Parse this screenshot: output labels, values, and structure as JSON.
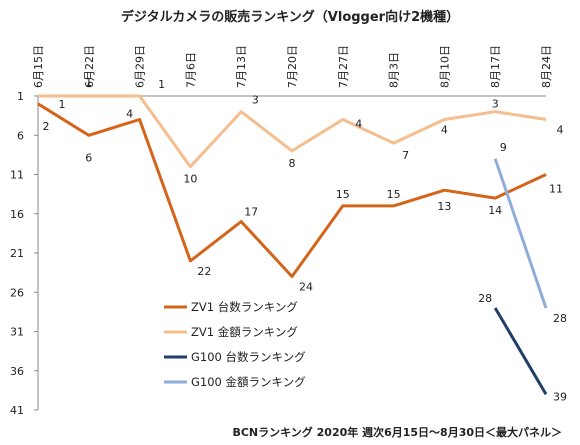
{
  "chart_data": {
    "type": "line",
    "title": "デジタルカメラの販売ランキング（Vlogger向け2機種）",
    "footer": "BCNランキング 2020年 週次6月15日～8月30日＜最大パネル＞",
    "categories": [
      "6月15日",
      "6月22日",
      "6月29日",
      "7月6日",
      "7月13日",
      "7月20日",
      "7月27日",
      "8月3日",
      "8月10日",
      "8月17日",
      "8月24日"
    ],
    "y_ticks": [
      1,
      6,
      11,
      16,
      21,
      26,
      31,
      36,
      41
    ],
    "ylim": [
      1,
      41
    ],
    "y_inverted": true,
    "grid": false,
    "legend_position": "lower-middle",
    "series": [
      {
        "name": "ZV1 台数ランキング",
        "color": "#D4641A",
        "values": [
          2,
          6,
          4,
          22,
          17,
          24,
          15,
          15,
          13,
          14,
          11
        ]
      },
      {
        "name": "ZV1 金額ランキング",
        "color": "#F4BE8E",
        "values": [
          1,
          1,
          1,
          10,
          3,
          8,
          4,
          7,
          4,
          3,
          4
        ]
      },
      {
        "name": "G100 台数ランキング",
        "color": "#1F3F68",
        "values": [
          null,
          null,
          null,
          null,
          null,
          null,
          null,
          null,
          null,
          28,
          39
        ]
      },
      {
        "name": "G100 金額ランキング",
        "color": "#8EADD9",
        "values": [
          null,
          null,
          null,
          null,
          null,
          null,
          null,
          null,
          null,
          9,
          28
        ]
      }
    ]
  }
}
